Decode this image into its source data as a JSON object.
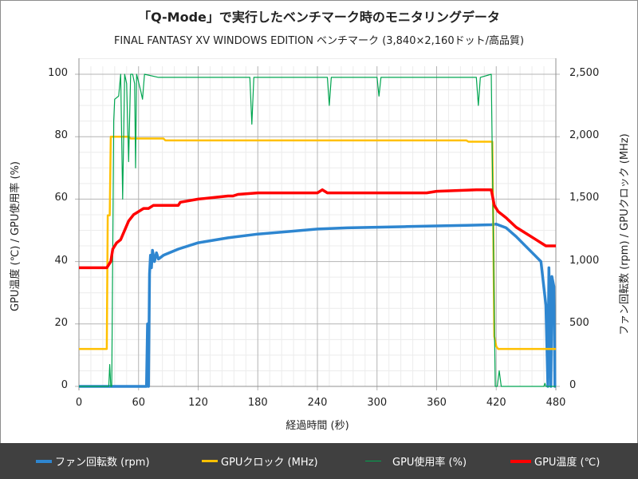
{
  "chart_data": {
    "type": "line",
    "title": "「Q-Mode」で実行したベンチマーク時のモニタリングデータ",
    "subtitle": "FINAL FANTASY XV WINDOWS EDITION ベンチマーク (3,840×2,160ドット/高品質)",
    "xlabel": "経過時間 (秒)",
    "ylabel_left": "GPU温度 (℃) / GPU使用率 (%)",
    "ylabel_right": "ファン回転数 (rpm) / GPUクロック (MHz)",
    "xlim": [
      0,
      480
    ],
    "ylim_left": [
      0,
      100
    ],
    "ylim_right": [
      0,
      2500
    ],
    "x_ticks": [
      "0",
      "60",
      "120",
      "180",
      "240",
      "300",
      "360",
      "420",
      "480"
    ],
    "y_left_ticks": [
      "0",
      "20",
      "40",
      "60",
      "80",
      "100"
    ],
    "y_right_ticks": [
      "0",
      "500",
      "1,000",
      "1,500",
      "2,000",
      "2,500"
    ],
    "grid": true,
    "legend_position": "bottom",
    "series": [
      {
        "name": "ファン回転数 (rpm)",
        "axis": "right",
        "color": "#2e86d0",
        "points": [
          [
            0,
            0
          ],
          [
            68,
            0
          ],
          [
            69,
            500
          ],
          [
            70,
            0
          ],
          [
            71,
            900
          ],
          [
            72,
            1050
          ],
          [
            73,
            950
          ],
          [
            74,
            1090
          ],
          [
            76,
            1000
          ],
          [
            78,
            1070
          ],
          [
            80,
            1020
          ],
          [
            85,
            1050
          ],
          [
            100,
            1100
          ],
          [
            120,
            1150
          ],
          [
            150,
            1190
          ],
          [
            180,
            1220
          ],
          [
            210,
            1240
          ],
          [
            240,
            1260
          ],
          [
            270,
            1270
          ],
          [
            300,
            1275
          ],
          [
            330,
            1280
          ],
          [
            360,
            1285
          ],
          [
            390,
            1290
          ],
          [
            415,
            1295
          ],
          [
            420,
            1300
          ],
          [
            430,
            1270
          ],
          [
            440,
            1200
          ],
          [
            450,
            1120
          ],
          [
            460,
            1040
          ],
          [
            465,
            1000
          ],
          [
            470,
            650
          ],
          [
            472,
            0
          ],
          [
            473,
            950
          ],
          [
            475,
            0
          ],
          [
            476,
            880
          ],
          [
            478,
            800
          ],
          [
            479,
            0
          ],
          [
            480,
            0
          ]
        ]
      },
      {
        "name": "GPUクロック (MHz)",
        "axis": "right",
        "color": "#ffc000",
        "points": [
          [
            0,
            300
          ],
          [
            28,
            300
          ],
          [
            29,
            1370
          ],
          [
            31,
            1370
          ],
          [
            32,
            2000
          ],
          [
            50,
            2000
          ],
          [
            52,
            1985
          ],
          [
            85,
            1985
          ],
          [
            87,
            1970
          ],
          [
            390,
            1970
          ],
          [
            392,
            1960
          ],
          [
            416,
            1960
          ],
          [
            417,
            1300
          ],
          [
            418,
            400
          ],
          [
            420,
            320
          ],
          [
            422,
            300
          ],
          [
            480,
            300
          ]
        ]
      },
      {
        "name": "GPU使用率 (%)",
        "axis": "left",
        "color": "#00a550",
        "points": [
          [
            0,
            0
          ],
          [
            30,
            0
          ],
          [
            31,
            7
          ],
          [
            32,
            0
          ],
          [
            33,
            0
          ],
          [
            35,
            85
          ],
          [
            36,
            92
          ],
          [
            40,
            93
          ],
          [
            42,
            100
          ],
          [
            44,
            60
          ],
          [
            46,
            100
          ],
          [
            48,
            97
          ],
          [
            50,
            72
          ],
          [
            52,
            100
          ],
          [
            54,
            100
          ],
          [
            56,
            97
          ],
          [
            57,
            70
          ],
          [
            58,
            100
          ],
          [
            62,
            95
          ],
          [
            64,
            92
          ],
          [
            66,
            100
          ],
          [
            80,
            99
          ],
          [
            100,
            99
          ],
          [
            172,
            99
          ],
          [
            174,
            84
          ],
          [
            176,
            99
          ],
          [
            240,
            99
          ],
          [
            250,
            99
          ],
          [
            252,
            90
          ],
          [
            254,
            99
          ],
          [
            300,
            99
          ],
          [
            302,
            93
          ],
          [
            304,
            99
          ],
          [
            360,
            99
          ],
          [
            400,
            99
          ],
          [
            402,
            90
          ],
          [
            404,
            99
          ],
          [
            415,
            100
          ],
          [
            419,
            0
          ],
          [
            421,
            0
          ],
          [
            423,
            5
          ],
          [
            425,
            0
          ],
          [
            468,
            0
          ],
          [
            469,
            1
          ],
          [
            470,
            0
          ],
          [
            480,
            0
          ]
        ]
      },
      {
        "name": "GPU温度 (℃)",
        "axis": "left",
        "color": "#ff0000",
        "points": [
          [
            0,
            38
          ],
          [
            28,
            38
          ],
          [
            30,
            39
          ],
          [
            32,
            40
          ],
          [
            34,
            44
          ],
          [
            38,
            46
          ],
          [
            42,
            47
          ],
          [
            46,
            50
          ],
          [
            50,
            53
          ],
          [
            55,
            55
          ],
          [
            60,
            56
          ],
          [
            65,
            57
          ],
          [
            70,
            57
          ],
          [
            75,
            58
          ],
          [
            100,
            58
          ],
          [
            102,
            59
          ],
          [
            120,
            60
          ],
          [
            150,
            61
          ],
          [
            155,
            61
          ],
          [
            160,
            61.5
          ],
          [
            180,
            62
          ],
          [
            240,
            62
          ],
          [
            245,
            63
          ],
          [
            250,
            62
          ],
          [
            300,
            62
          ],
          [
            350,
            62
          ],
          [
            360,
            62.5
          ],
          [
            400,
            63
          ],
          [
            415,
            63
          ],
          [
            418,
            58
          ],
          [
            422,
            56
          ],
          [
            430,
            54
          ],
          [
            440,
            51
          ],
          [
            450,
            49
          ],
          [
            460,
            47
          ],
          [
            465,
            46
          ],
          [
            470,
            45
          ],
          [
            480,
            45
          ]
        ]
      }
    ]
  },
  "title": "「Q-Mode」で実行したベンチマーク時のモニタリングデータ",
  "subtitle": "FINAL FANTASY XV WINDOWS EDITION ベンチマーク (3,840×2,160ドット/高品質)",
  "axes": {
    "xlabel": "経過時間 (秒)",
    "ylabel_left": "GPU温度 (℃) / GPU使用率 (%)",
    "ylabel_right": "ファン回転数 (rpm) / GPUクロック (MHz)",
    "x_ticks": [
      "0",
      "60",
      "120",
      "180",
      "240",
      "300",
      "360",
      "420",
      "480"
    ],
    "y_left_ticks": [
      "0",
      "20",
      "40",
      "60",
      "80",
      "100"
    ],
    "y_right_ticks": [
      "0",
      "500",
      "1,000",
      "1,500",
      "2,000",
      "2,500"
    ]
  },
  "legend": [
    {
      "label": "ファン回転数 (rpm)",
      "color": "#2e86d0"
    },
    {
      "label": "GPUクロック (MHz)",
      "color": "#ffc000"
    },
    {
      "label": "GPU使用率 (%)",
      "color": "#00a550"
    },
    {
      "label": "GPU温度 (℃)",
      "color": "#ff0000"
    }
  ]
}
